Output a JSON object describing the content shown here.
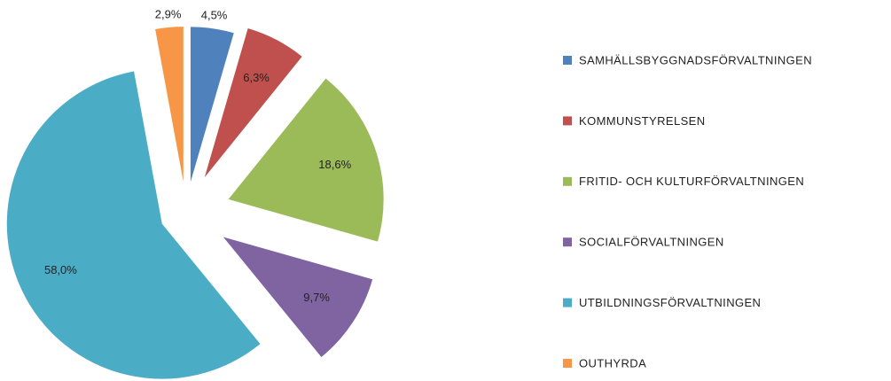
{
  "chart_data": {
    "type": "pie",
    "categories": [
      "SAMHÄLLSBYGGNADSFÖRVALTNINGEN",
      "KOMMUNSTYRELSEN",
      "FRITID- OCH KULTURFÖRVALTNINGEN",
      "SOCIALFÖRVALTNINGEN",
      "UTBILDNINGSFÖRVALTNINGEN",
      "OUTHYRDA"
    ],
    "values": [
      4.5,
      6.3,
      18.6,
      9.7,
      58.0,
      2.9
    ],
    "value_labels": [
      "4,5%",
      "6,3%",
      "18,6%",
      "9,7%",
      "58,0%",
      "2,9%"
    ],
    "colors": [
      "#4f81bd",
      "#c0504d",
      "#9bbb59",
      "#8064a2",
      "#4bacc6",
      "#f79646"
    ],
    "legend": "right"
  }
}
